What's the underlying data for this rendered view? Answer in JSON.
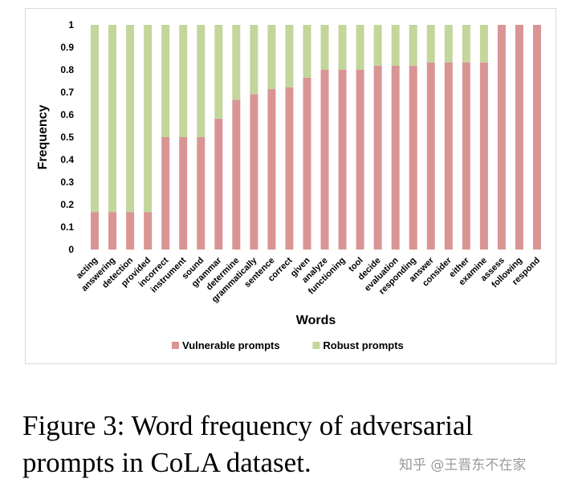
{
  "chart_data": {
    "type": "bar",
    "stacked": true,
    "title": "",
    "xlabel": "Words",
    "ylabel": "Frequency",
    "ylim": [
      0,
      1
    ],
    "yticks": [
      "0",
      "0.1",
      "0.2",
      "0.3",
      "0.4",
      "0.5",
      "0.6",
      "0.7",
      "0.8",
      "0.9",
      "1"
    ],
    "grid": false,
    "legend_position": "bottom",
    "categories": [
      "acting",
      "answering",
      "detection",
      "provided",
      "incorrect",
      "instrument",
      "sound",
      "grammar",
      "determine",
      "grammatically",
      "sentence",
      "correct",
      "given",
      "analyze",
      "functioning",
      "tool",
      "decide",
      "evaluation",
      "responding",
      "answer",
      "consider",
      "either",
      "examine",
      "assess",
      "following",
      "respond"
    ],
    "series": [
      {
        "name": "Vulnerable prompts",
        "color": "#d99594",
        "values": [
          0.167,
          0.167,
          0.167,
          0.167,
          0.5,
          0.5,
          0.5,
          0.583,
          0.667,
          0.692,
          0.714,
          0.722,
          0.765,
          0.8,
          0.8,
          0.8,
          0.818,
          0.818,
          0.818,
          0.833,
          0.833,
          0.833,
          0.833,
          1.0,
          1.0,
          1.0
        ]
      },
      {
        "name": "Robust prompts",
        "color": "#c3d69b",
        "values": [
          0.833,
          0.833,
          0.833,
          0.833,
          0.5,
          0.5,
          0.5,
          0.417,
          0.333,
          0.308,
          0.286,
          0.278,
          0.235,
          0.2,
          0.2,
          0.2,
          0.182,
          0.182,
          0.182,
          0.167,
          0.167,
          0.167,
          0.167,
          0.0,
          0.0,
          0.0
        ]
      }
    ]
  },
  "caption": "Figure 3: Word frequency of adversarial prompts in CoLA dataset.",
  "watermark": "知乎 @王晋东不在家"
}
